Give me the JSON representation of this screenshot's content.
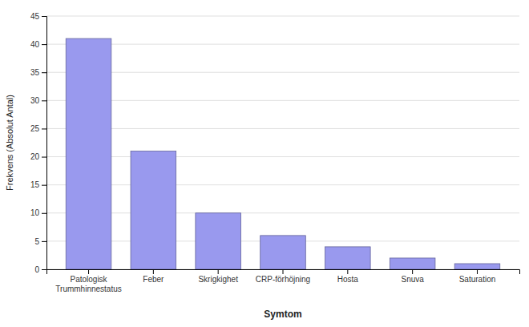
{
  "chart_data": {
    "type": "bar",
    "categories": [
      "Patologisk\nTrummhinnestatus",
      "Feber",
      "Skrigkighet",
      "CRP-förhöjning",
      "Hosta",
      "Snuva",
      "Saturation"
    ],
    "values": [
      41,
      21,
      10,
      6,
      4,
      2,
      1
    ],
    "color": "#9999ee",
    "xlabel": "Symtom",
    "ylabel": "Frekvens (Absolut Antal)",
    "ylim": [
      0,
      45
    ],
    "yticks": [
      0,
      5,
      10,
      15,
      20,
      25,
      30,
      35,
      40,
      45
    ],
    "grid": true
  }
}
